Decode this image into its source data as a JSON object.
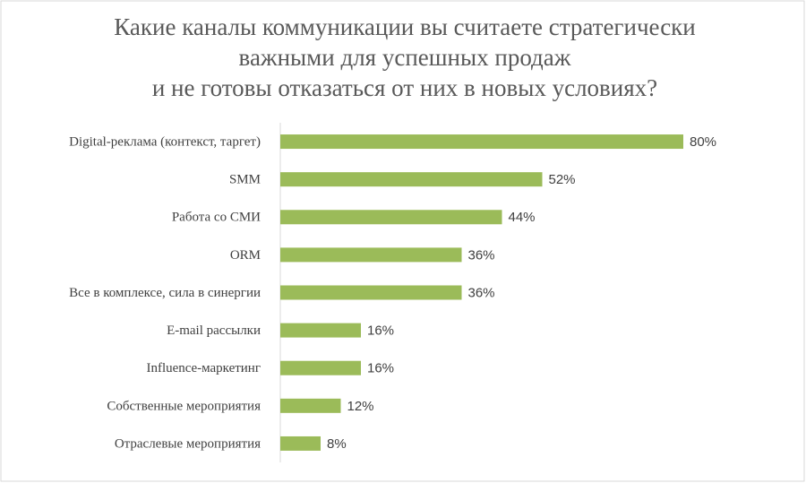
{
  "chart_data": {
    "type": "bar",
    "orientation": "horizontal",
    "title": [
      "Какие каналы коммуникации вы считаете стратегически",
      "важными для успешных продаж",
      "и не готовы отказаться от них в новых условиях?"
    ],
    "categories": [
      "Digital-реклама (контекст, таргет)",
      "SMM",
      "Работа со СМИ",
      "ORM",
      "Все в комплексе, сила в синергии",
      "E-mail рассылки",
      "Influence-маркетинг",
      "Собственные мероприятия",
      "Отраслевые мероприятия"
    ],
    "values": [
      80,
      52,
      44,
      36,
      36,
      16,
      16,
      12,
      8
    ],
    "value_labels": [
      "80%",
      "52%",
      "44%",
      "36%",
      "36%",
      "16%",
      "16%",
      "12%",
      "8%"
    ],
    "color": "#9bbb59",
    "xlim": [
      0,
      80
    ]
  }
}
